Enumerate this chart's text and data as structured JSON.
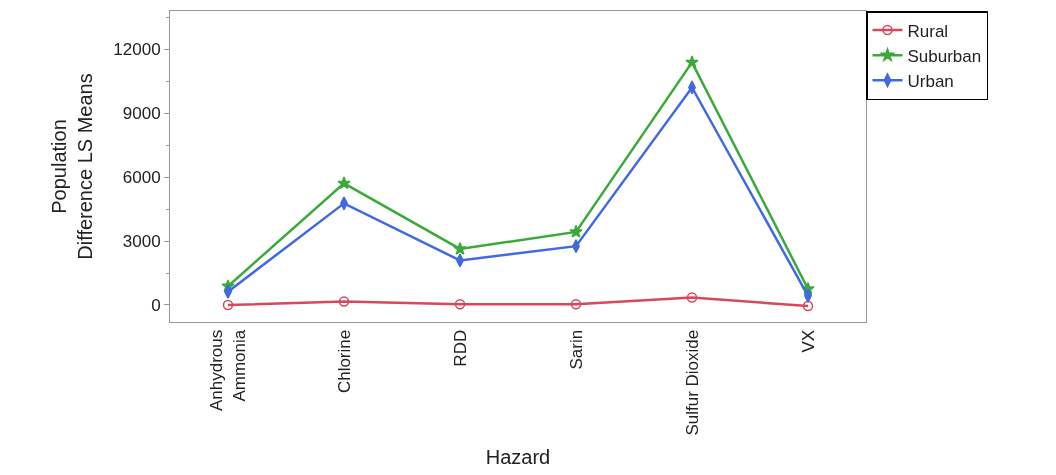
{
  "chart_data": {
    "type": "line",
    "xlabel": "Hazard",
    "ylabel": "Population\nDifference LS Means",
    "categories": [
      "Anhydrous\nAmmonia",
      "Chlorine",
      "RDD",
      "Sarin",
      "Sulfur Dioxide",
      "VX"
    ],
    "series": [
      {
        "name": "Rural",
        "color": "#d9475a",
        "marker": "circle",
        "values": [
          0,
          160,
          30,
          30,
          350,
          -50
        ]
      },
      {
        "name": "Suburban",
        "color": "#3aaa3a",
        "marker": "star",
        "values": [
          880,
          5710,
          2630,
          3430,
          11390,
          750
        ]
      },
      {
        "name": "Urban",
        "color": "#4169e1",
        "marker": "diamond",
        "values": [
          620,
          4770,
          2090,
          2760,
          10210,
          430
        ]
      }
    ],
    "ylim": [
      -800,
      13800
    ],
    "yticks": [
      0,
      3000,
      6000,
      9000,
      12000
    ],
    "legend": "top right",
    "line_style": "solid"
  }
}
